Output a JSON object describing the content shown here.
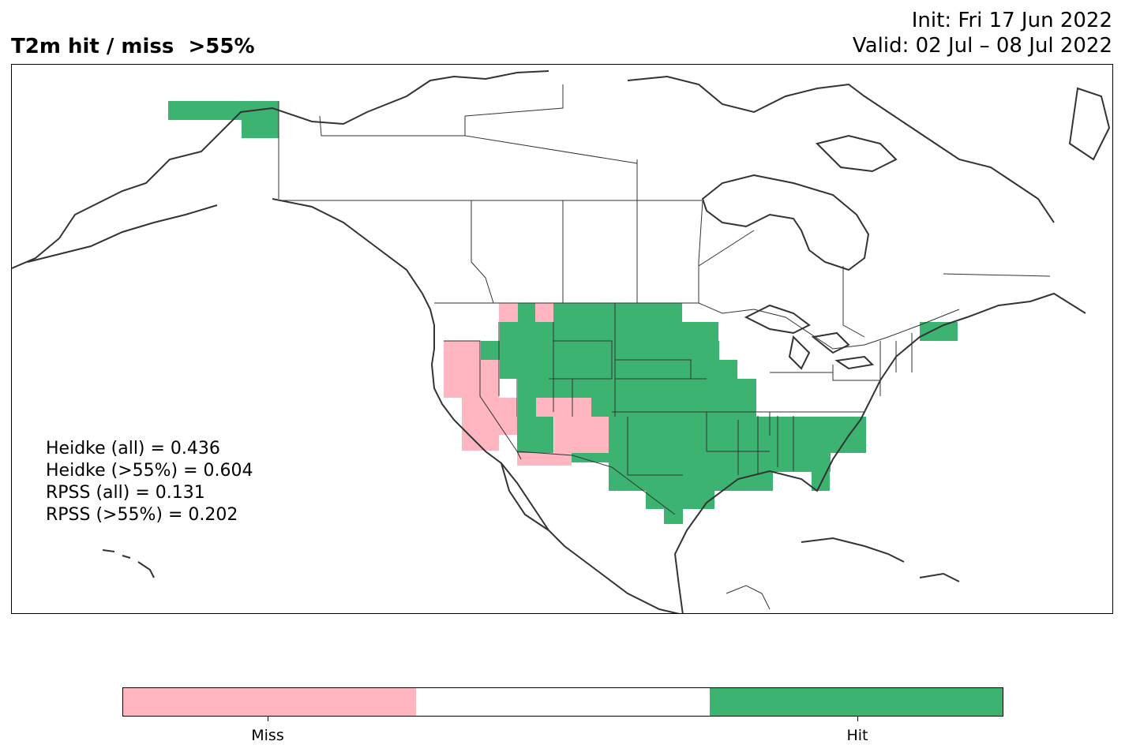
{
  "header": {
    "title": "T2m hit / miss  >55%",
    "init": "Init: Fri 17 Jun 2022",
    "valid": "Valid: 02 Jul – 08 Jul 2022"
  },
  "stats": {
    "heidke_all": "Heidke (all) = 0.436",
    "heidke_55": "Heidke (>55%) = 0.604",
    "rpss_all": "RPSS (all) = 0.131",
    "rpss_55": "RPSS (>55%) = 0.202"
  },
  "colorbar": {
    "colors": [
      "#ffb6c1",
      "#ffffff",
      "#3cb371"
    ],
    "labels": [
      "Miss",
      "Hit"
    ]
  },
  "map": {
    "region": "North America",
    "legend": [
      "Miss",
      "Hit"
    ],
    "hit_color": "#3cb371",
    "miss_color": "#ffb6c1",
    "coast_color": "#333333"
  }
}
